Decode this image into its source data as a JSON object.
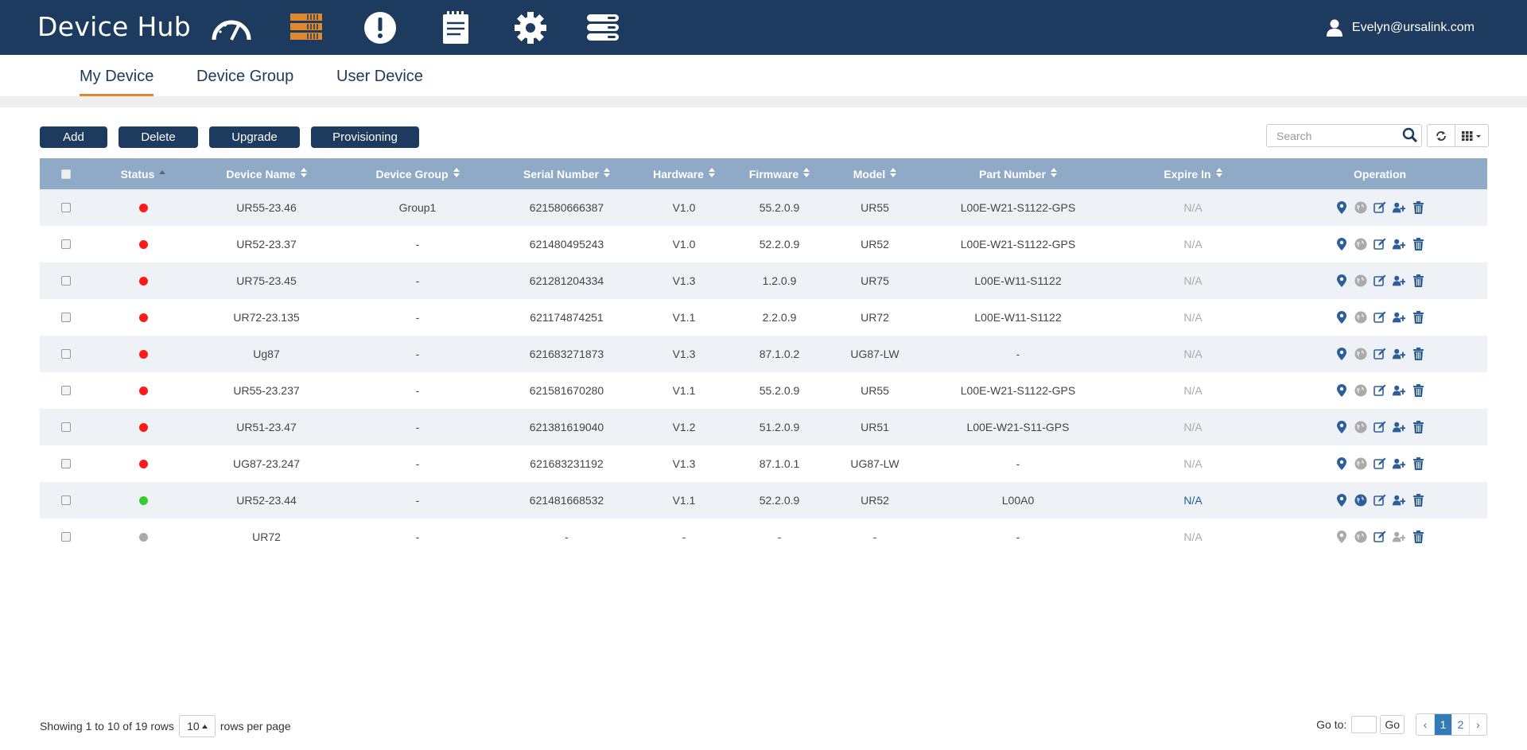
{
  "app": {
    "title": "Device Hub",
    "user": "Evelyn@ursalink.com"
  },
  "nav": [
    {
      "icon": "dashboard-gauge-icon",
      "active": false
    },
    {
      "icon": "device-rack-icon",
      "active": true
    },
    {
      "icon": "alarm-exclamation-icon",
      "active": false
    },
    {
      "icon": "log-notepad-icon",
      "active": false
    },
    {
      "icon": "settings-gear-icon",
      "active": false
    },
    {
      "icon": "server-list-icon",
      "active": false
    }
  ],
  "tabs": [
    {
      "label": "My Device",
      "active": true
    },
    {
      "label": "Device Group",
      "active": false
    },
    {
      "label": "User Device",
      "active": false
    }
  ],
  "toolbar": {
    "add": "Add",
    "delete": "Delete",
    "upgrade": "Upgrade",
    "provisioning": "Provisioning",
    "search_placeholder": "Search"
  },
  "table": {
    "columns": [
      "Status",
      "Device Name",
      "Device Group",
      "Serial Number",
      "Hardware",
      "Firmware",
      "Model",
      "Part Number",
      "Expire In",
      "Operation"
    ],
    "rows": [
      {
        "status": "offline",
        "name": "UR55-23.46",
        "group": "Group1",
        "serial": "621580666387",
        "hardware": "V1.0",
        "firmware": "55.2.0.9",
        "model": "UR55",
        "part": "L00E-W21-S1122-GPS",
        "expire": "N/A"
      },
      {
        "status": "offline",
        "name": "UR52-23.37",
        "group": "-",
        "serial": "621480495243",
        "hardware": "V1.0",
        "firmware": "52.2.0.9",
        "model": "UR52",
        "part": "L00E-W21-S1122-GPS",
        "expire": "N/A"
      },
      {
        "status": "offline",
        "name": "UR75-23.45",
        "group": "-",
        "serial": "621281204334",
        "hardware": "V1.3",
        "firmware": "1.2.0.9",
        "model": "UR75",
        "part": "L00E-W11-S1122",
        "expire": "N/A"
      },
      {
        "status": "offline",
        "name": "UR72-23.135",
        "group": "-",
        "serial": "621174874251",
        "hardware": "V1.1",
        "firmware": "2.2.0.9",
        "model": "UR72",
        "part": "L00E-W11-S1122",
        "expire": "N/A"
      },
      {
        "status": "offline",
        "name": "Ug87",
        "group": "-",
        "serial": "621683271873",
        "hardware": "V1.3",
        "firmware": "87.1.0.2",
        "model": "UG87-LW",
        "part": "-",
        "expire": "N/A"
      },
      {
        "status": "offline",
        "name": "UR55-23.237",
        "group": "-",
        "serial": "621581670280",
        "hardware": "V1.1",
        "firmware": "55.2.0.9",
        "model": "UR55",
        "part": "L00E-W21-S1122-GPS",
        "expire": "N/A"
      },
      {
        "status": "offline",
        "name": "UR51-23.47",
        "group": "-",
        "serial": "621381619040",
        "hardware": "V1.2",
        "firmware": "51.2.0.9",
        "model": "UR51",
        "part": "L00E-W21-S11-GPS",
        "expire": "N/A"
      },
      {
        "status": "offline",
        "name": "UG87-23.247",
        "group": "-",
        "serial": "621683231192",
        "hardware": "V1.3",
        "firmware": "87.1.0.1",
        "model": "UG87-LW",
        "part": "-",
        "expire": "N/A"
      },
      {
        "status": "online",
        "name": "UR52-23.44",
        "group": "-",
        "serial": "621481668532",
        "hardware": "V1.1",
        "firmware": "52.2.0.9",
        "model": "UR52",
        "part": "L00A0",
        "expire": "N/A"
      },
      {
        "status": "inactive",
        "name": "UR72",
        "group": "-",
        "serial": "-",
        "hardware": "-",
        "firmware": "-",
        "model": "-",
        "part": "-",
        "expire": "N/A"
      }
    ]
  },
  "footer": {
    "showing_prefix": "Showing 1 to 10 of 19 rows",
    "page_size": "10",
    "rows_per_page": "rows per page",
    "goto_label": "Go to:",
    "go": "Go",
    "prev": "‹",
    "next": "›",
    "pages": [
      "1",
      "2"
    ]
  },
  "colors": {
    "header_bg": "#1d3a5f",
    "accent": "#e0882e",
    "table_head": "#8faac7",
    "offline": "#ff1a1a",
    "online": "#33cc33",
    "inactive": "#aaaaaa",
    "op_blue": "#2c5f9a"
  }
}
